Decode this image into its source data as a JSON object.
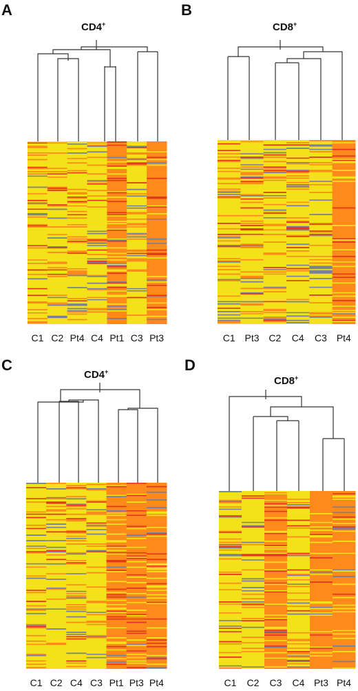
{
  "chart_data": [
    {
      "type": "heatmap",
      "panel": "A",
      "title": "CD4",
      "title_sup": "+",
      "columns": [
        "C1",
        "C2",
        "Pt4",
        "C4",
        "Pt1",
        "C3",
        "Pt3"
      ],
      "column_tone": [
        "yellow",
        "yellow",
        "yellow",
        "yellow",
        "orange",
        "yellow",
        "orange"
      ],
      "tree": [
        [
          "C4",
          "Pt1"
        ],
        [
          "C2",
          "Pt4"
        ],
        [
          "C3",
          "Pt3"
        ],
        [
          "C1",
          "C2+Pt4"
        ],
        [
          "C2+Pt4+C1",
          "C4+Pt1"
        ],
        [
          "all-left",
          "C3+Pt3"
        ]
      ],
      "colors": {
        "low": "#7a7f9a",
        "mid": "#f3e21a",
        "high": "#ff8a1c",
        "peak": "#e2381a"
      }
    },
    {
      "type": "heatmap",
      "panel": "B",
      "title": "CD8",
      "title_sup": "+",
      "columns": [
        "C1",
        "Pt3",
        "C2",
        "C4",
        "C3",
        "Pt4"
      ],
      "column_tone": [
        "yellow",
        "yellow",
        "yellow",
        "yellow",
        "yellow",
        "orange"
      ],
      "tree": [
        [
          "C1",
          "Pt3"
        ],
        [
          "C2",
          "C4"
        ],
        [
          "C2+C4",
          "C3"
        ],
        [
          "C2+C4+C3",
          "Pt4"
        ],
        [
          "C1+Pt3",
          "rest"
        ]
      ],
      "colors": {
        "low": "#7a7f9a",
        "mid": "#f3e21a",
        "high": "#ff8a1c",
        "peak": "#e2381a"
      }
    },
    {
      "type": "heatmap",
      "panel": "C",
      "title": "CD4",
      "title_sup": "+",
      "columns": [
        "C1",
        "C2",
        "C4",
        "C3",
        "Pt1",
        "Pt3",
        "Pt4"
      ],
      "column_tone": [
        "yellow",
        "yellow",
        "yellow",
        "yellow",
        "orange",
        "orange",
        "orange"
      ],
      "tree": [
        [
          "C2",
          "C4"
        ],
        [
          "C2+C4",
          "C3"
        ],
        [
          "C1",
          "C2+C4+C3"
        ],
        [
          "Pt1",
          "Pt3"
        ],
        [
          "Pt1+Pt3",
          "Pt4"
        ],
        [
          "controls",
          "patients"
        ]
      ],
      "colors": {
        "low": "#7a7f9a",
        "mid": "#f3e21a",
        "high": "#ff8a1c",
        "peak": "#e2381a"
      }
    },
    {
      "type": "heatmap",
      "panel": "D",
      "title": "CD8",
      "title_sup": "+",
      "columns": [
        "C1",
        "C2",
        "C3",
        "C4",
        "Pt3",
        "Pt4"
      ],
      "column_tone": [
        "yellow",
        "yellow",
        "orange",
        "yellow",
        "orange",
        "orange"
      ],
      "tree": [
        [
          "C3",
          "C4"
        ],
        [
          "C2",
          "C3+C4"
        ],
        [
          "Pt3",
          "Pt4"
        ],
        [
          "C2+C3+C4",
          "Pt3+Pt4"
        ],
        [
          "C1",
          "rest"
        ]
      ],
      "colors": {
        "low": "#7a7f9a",
        "mid": "#f3e21a",
        "high": "#ff8a1c",
        "peak": "#e2381a"
      }
    }
  ]
}
